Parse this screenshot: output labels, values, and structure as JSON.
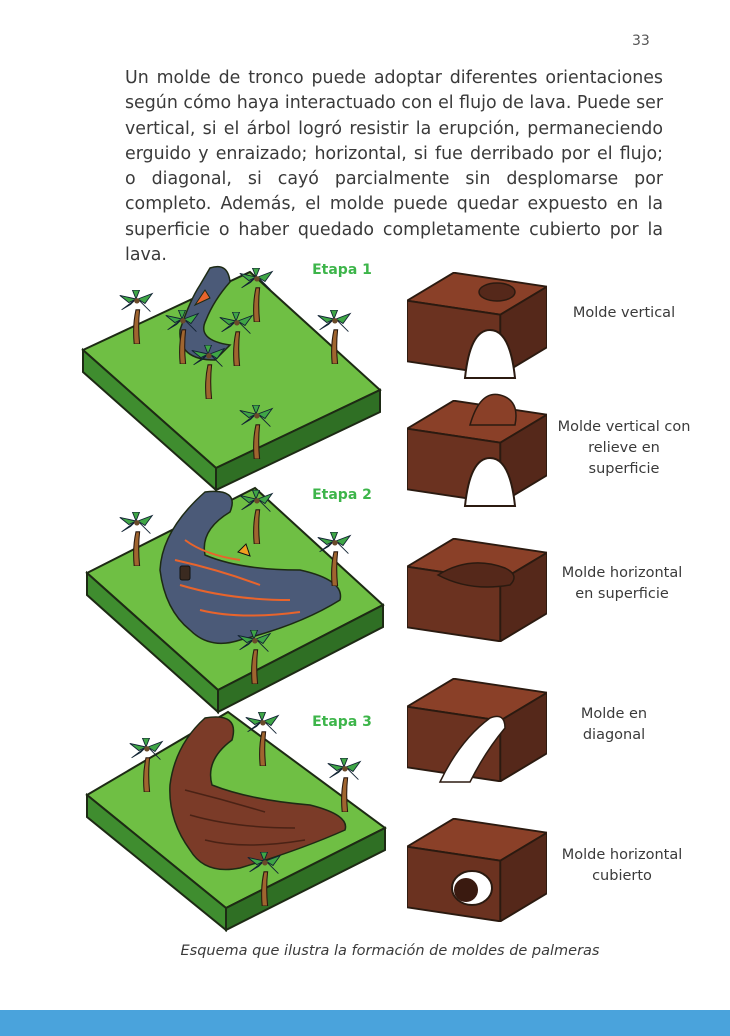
{
  "page": {
    "number": "33",
    "intro_text": "Un molde de tronco puede adoptar diferentes orientaciones según cómo haya interactuado con el flujo de lava. Puede ser vertical, si el árbol logró resistir la erupción, permaneciendo erguido y enraizado; horizontal, si fue derribado por el flujo; o diagonal, si cayó parcialmente sin desplomarse por completo. Además, el molde puede quedar expuesto en la superficie o haber quedado completamente cubierto por la lava.",
    "caption": "Esquema que ilustra la formación de moldes de palmeras"
  },
  "stages": [
    {
      "label": "Etapa 1"
    },
    {
      "label": "Etapa 2"
    },
    {
      "label": "Etapa 3"
    }
  ],
  "molds": [
    {
      "label": "Molde vertical"
    },
    {
      "label": "Molde vertical con relieve en superficie"
    },
    {
      "label": "Molde horizontal en superficie"
    },
    {
      "label": "Molde en diagonal"
    },
    {
      "label": "Molde horizontal cubierto"
    }
  ],
  "colors": {
    "stage_green": "#3db54a",
    "grass": "#6fbf44",
    "grass_dark": "#3f8d2f",
    "lava_flow": "#4b5a78",
    "lava_glow": "#e8642c",
    "cooled_lava": "#7b3b28",
    "mold_rock": "#6b3220",
    "footer": "#4aa3dc"
  }
}
